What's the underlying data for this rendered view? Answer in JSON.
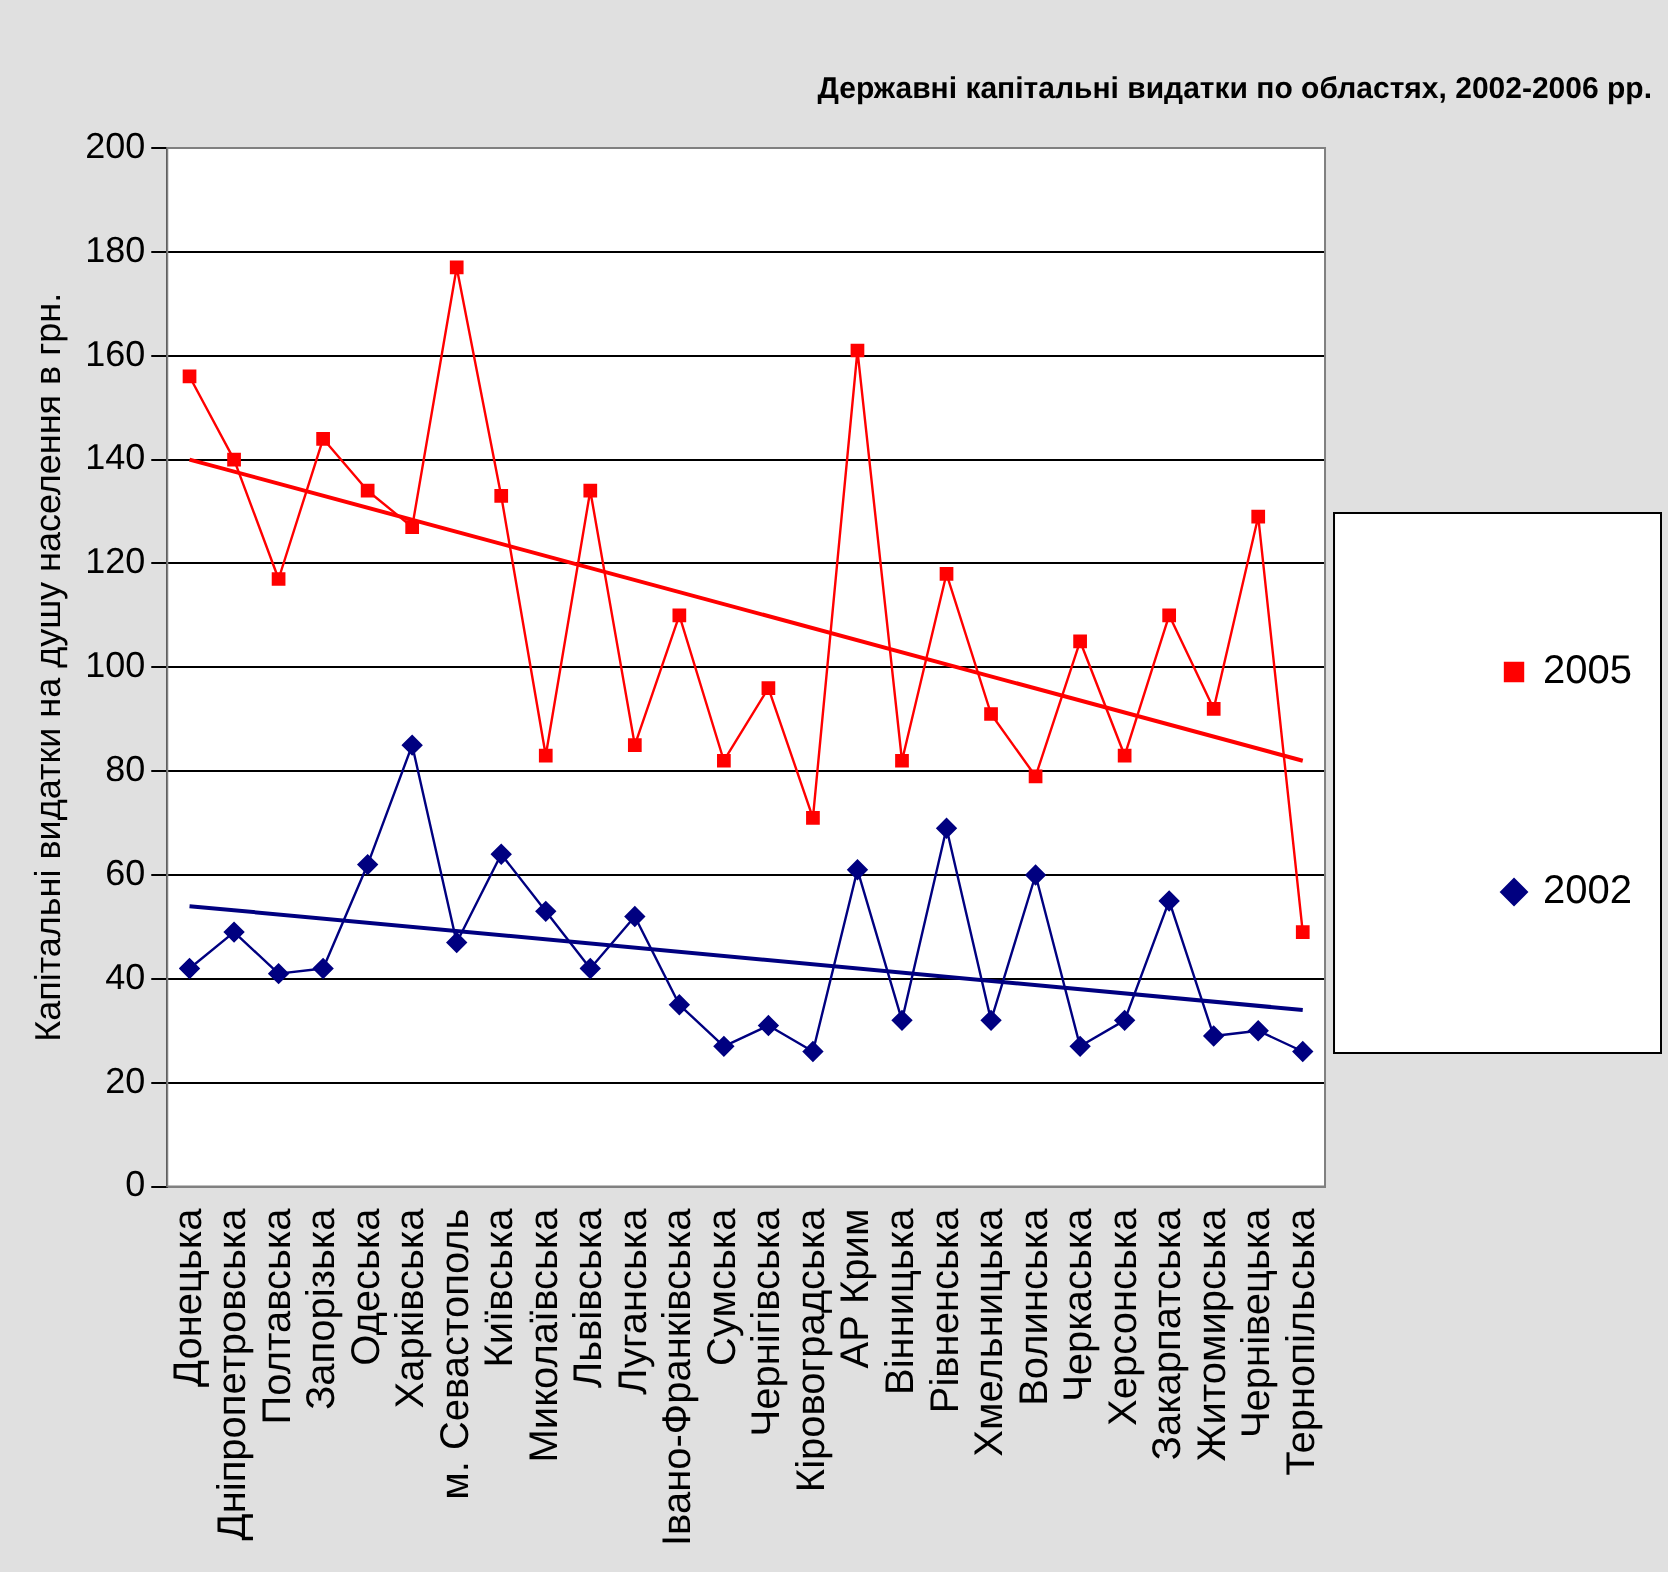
{
  "chart_data": {
    "type": "line",
    "title": "Державні капітальні видатки по областях, 2002-2006 рр.",
    "ylabel": "Капітальні видатки на душу населення в грн.",
    "categories": [
      "Донецька",
      "Дніпропетровська",
      "Полтавська",
      "Запорізька",
      "Одеська",
      "Харківська",
      "м. Севастополь",
      "Київська",
      "Миколаївська",
      "Львівська",
      "Луганська",
      "Івано-Франківська",
      "Сумська",
      "Чернігівська",
      "Кіровоградська",
      "АР Крим",
      "Вінницька",
      "Рівненська",
      "Хмельницька",
      "Волинська",
      "Черкаська",
      "Херсонська",
      "Закарпатська",
      "Житомирська",
      "Чернівецька",
      "Тернопільська"
    ],
    "series": [
      {
        "name": "2005",
        "color": "#ff0000",
        "marker": "square",
        "values": [
          156,
          140,
          117,
          144,
          134,
          127,
          177,
          133,
          83,
          134,
          85,
          110,
          82,
          96,
          71,
          161,
          82,
          118,
          91,
          79,
          105,
          83,
          110,
          92,
          129,
          49
        ]
      },
      {
        "name": "2002",
        "color": "#000080",
        "marker": "diamond",
        "values": [
          42,
          49,
          41,
          42,
          62,
          85,
          47,
          64,
          53,
          42,
          52,
          35,
          27,
          31,
          26,
          61,
          32,
          69,
          32,
          60,
          27,
          32,
          55,
          29,
          30,
          26
        ]
      },
      {
        "type": "line",
        "color": "#ff0000",
        "marker": "none",
        "x": [
          "Донецька",
          "Тернопільська"
        ],
        "values": [
          140,
          82
        ]
      },
      {
        "type": "line",
        "color": "#000080",
        "marker": "none",
        "x": [
          "Донецька",
          "Тернопільська"
        ],
        "values": [
          54,
          34
        ]
      }
    ],
    "ylim": [
      0,
      200
    ],
    "yticks": [
      0,
      20,
      40,
      60,
      80,
      100,
      120,
      140,
      160,
      180,
      200
    ],
    "grid": "y",
    "legend": "right"
  }
}
